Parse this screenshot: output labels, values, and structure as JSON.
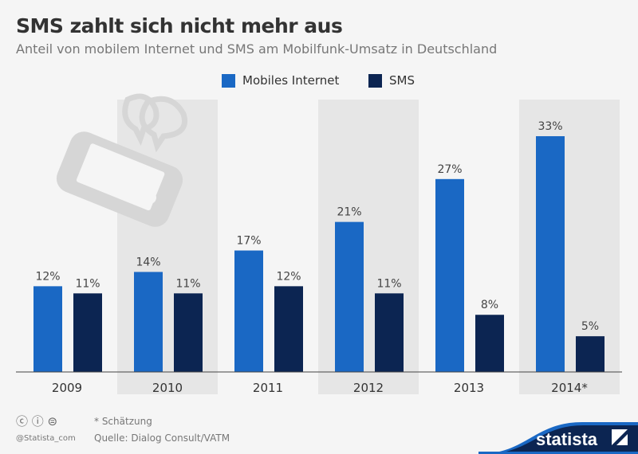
{
  "chart_data": {
    "type": "bar",
    "title": "SMS zahlt sich nicht mehr aus",
    "subtitle": "Anteil von mobilem Internet und SMS am Mobilfunk-Umsatz in Deutschland",
    "categories": [
      "2009",
      "2010",
      "2011",
      "2012",
      "2013",
      "2014*"
    ],
    "series": [
      {
        "name": "Mobiles Internet",
        "values": [
          12,
          14,
          17,
          21,
          27,
          33
        ],
        "labels": [
          "12%",
          "14%",
          "17%",
          "21%",
          "27%",
          "33%"
        ],
        "color": "#1a68c4"
      },
      {
        "name": "SMS",
        "values": [
          11,
          11,
          12,
          11,
          8,
          5
        ],
        "labels": [
          "11%",
          "11%",
          "12%",
          "11%",
          "8%",
          "5%"
        ],
        "color": "#0c2552"
      }
    ],
    "ylim": [
      0,
      35
    ],
    "grid": false,
    "legend": "top"
  },
  "footer": {
    "note": "* Schätzung",
    "source": "Quelle: Dialog Consult/VATM",
    "handle": "@Statista_com",
    "brand": "statista"
  }
}
